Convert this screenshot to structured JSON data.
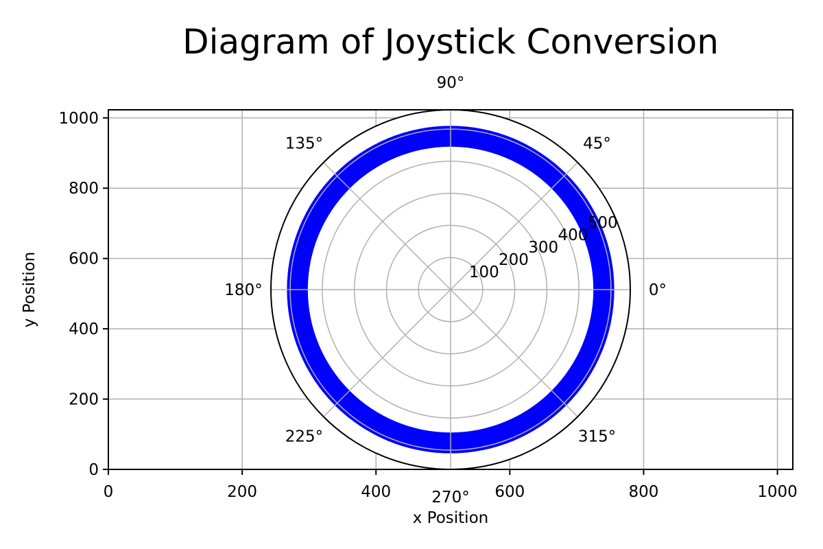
{
  "chart_data": [
    {
      "type": "line",
      "title": "Diagram of Joystick Conversion",
      "xlabel": "x Position",
      "ylabel": "y Position",
      "xlim": [
        0,
        1023
      ],
      "ylim": [
        0,
        1023
      ],
      "xticks": [
        "0",
        "200",
        "400",
        "600",
        "800",
        "1000"
      ],
      "yticks": [
        "0",
        "200",
        "400",
        "600",
        "800",
        "1000"
      ],
      "grid": true
    },
    {
      "type": "polar",
      "angle_labels": [
        "0°",
        "45°",
        "90°",
        "135°",
        "180°",
        "225°",
        "270°",
        "315°"
      ],
      "radial_ticks": [
        "100",
        "200",
        "300",
        "400",
        "500"
      ],
      "rmax": 560,
      "grid": true,
      "series": [
        {
          "type": "filled-ring",
          "r_inner": 445,
          "r_outer": 510,
          "color": "#0000ff"
        }
      ]
    }
  ]
}
